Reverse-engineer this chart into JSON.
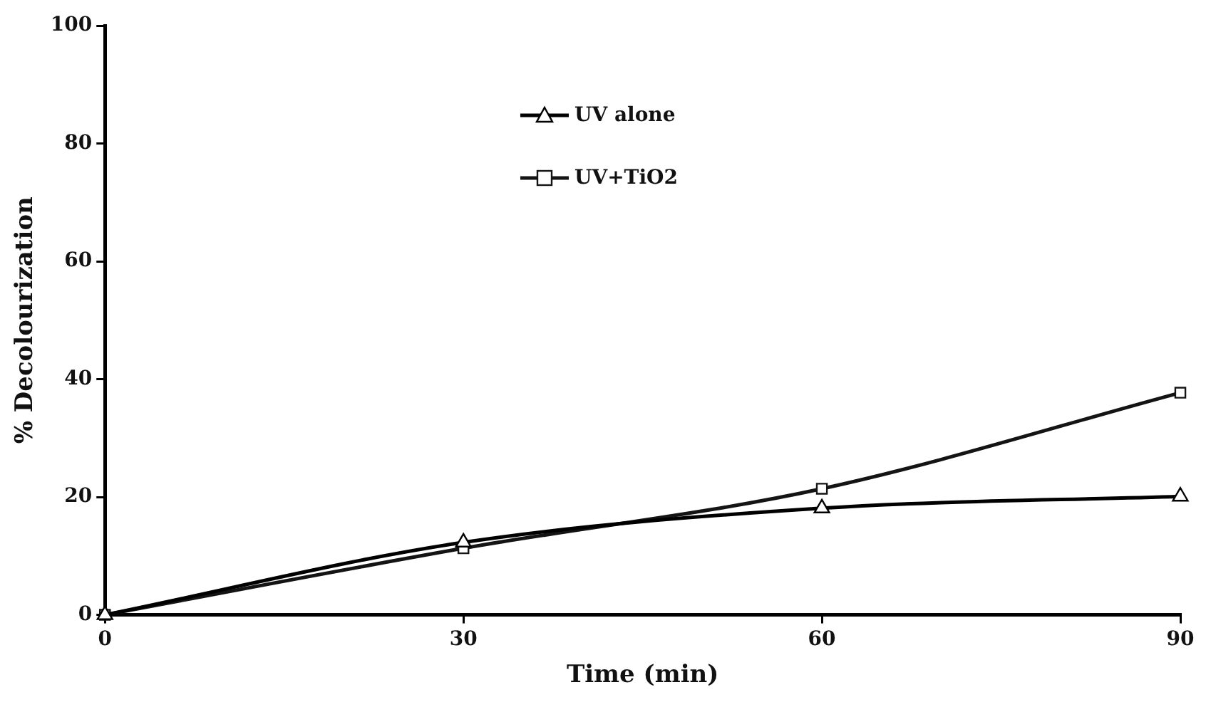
{
  "chart_data": {
    "type": "line",
    "xlabel": "Time (min)",
    "ylabel": "% Decolourization",
    "x": [
      0,
      30,
      60,
      90
    ],
    "series": [
      {
        "name": "UV alone",
        "color": "#000000",
        "marker": "triangle",
        "values": [
          0,
          12.3,
          18.1,
          20.1
        ]
      },
      {
        "name": "UV+TiO2",
        "color": "#141414",
        "marker": "square",
        "values": [
          0,
          11.3,
          21.4,
          37.7
        ]
      }
    ],
    "xlim": [
      0,
      90
    ],
    "xticks": [
      0,
      30,
      60,
      90
    ],
    "ylim": [
      0,
      100
    ],
    "yticks": [
      0,
      20,
      40,
      60,
      80,
      100
    ],
    "grid": false,
    "legend": "top"
  }
}
